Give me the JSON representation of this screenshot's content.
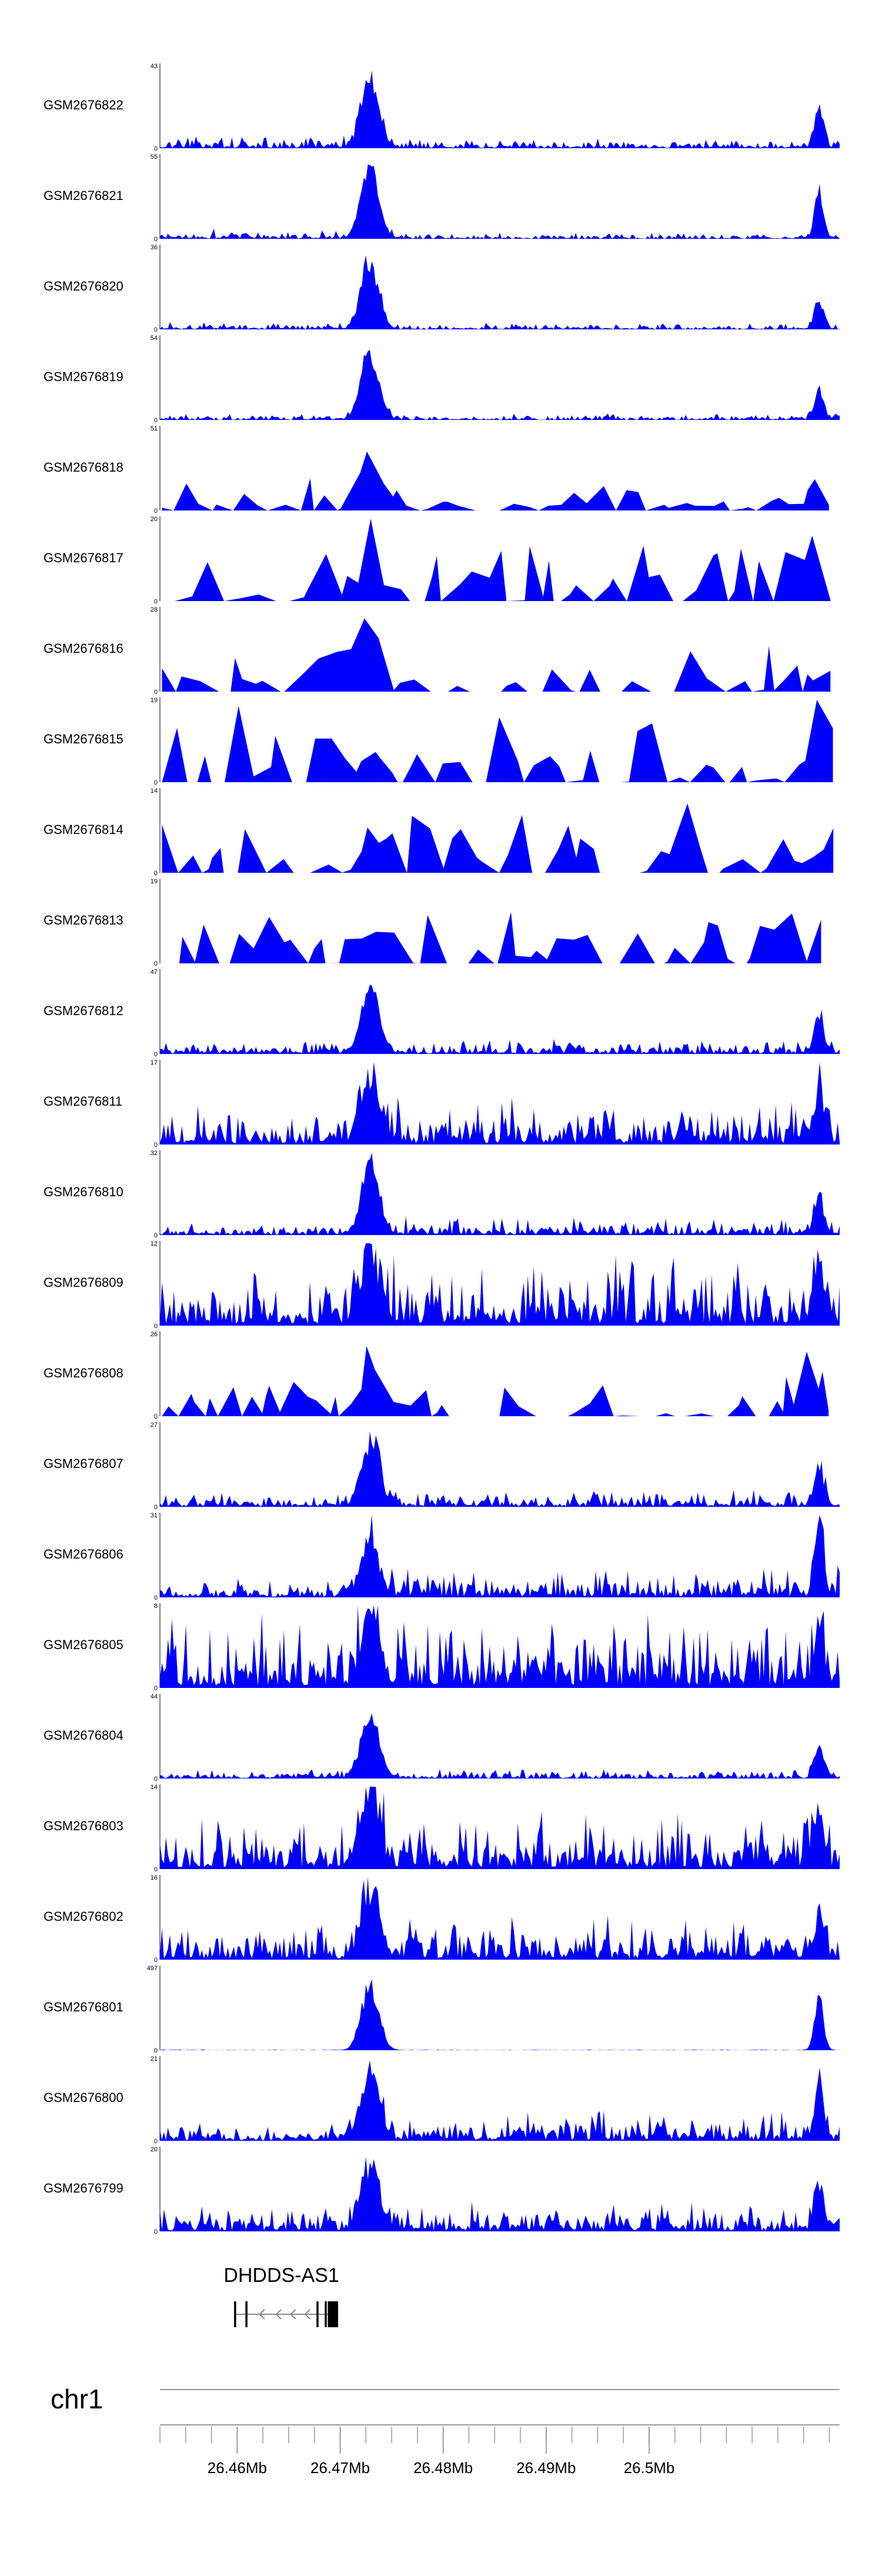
{
  "chart_data": {
    "type": "area",
    "color": "#0000ff",
    "x_unit": "Mb",
    "xlim": [
      26.4525,
      26.5185
    ],
    "series": [
      {
        "name": "GSM2676822",
        "ymax": 43,
        "shape": "peak",
        "peak_height": 1.0,
        "left_noise": 0.1,
        "right_noise": 0.08,
        "end_peak": 0.55,
        "sparse": false
      },
      {
        "name": "GSM2676821",
        "ymax": 55,
        "shape": "peak",
        "peak_height": 1.0,
        "left_noise": 0.08,
        "right_noise": 0.05,
        "end_peak": 0.65,
        "sparse": false
      },
      {
        "name": "GSM2676820",
        "ymax": 36,
        "shape": "peak",
        "peak_height": 1.0,
        "left_noise": 0.06,
        "right_noise": 0.05,
        "end_peak": 0.4,
        "sparse": false
      },
      {
        "name": "GSM2676819",
        "ymax": 54,
        "shape": "peak",
        "peak_height": 1.0,
        "left_noise": 0.05,
        "right_noise": 0.05,
        "end_peak": 0.45,
        "sparse": false
      },
      {
        "name": "GSM2676818",
        "ymax": 51,
        "shape": "peak",
        "peak_height": 0.9,
        "left_noise": 0.35,
        "right_noise": 0.25,
        "end_peak": 0.6,
        "sparse": true
      },
      {
        "name": "GSM2676817",
        "ymax": 20,
        "shape": "sparse",
        "peak_height": 0.7,
        "left_noise": 0.55,
        "right_noise": 0.85,
        "end_peak": 0.5,
        "sparse": true
      },
      {
        "name": "GSM2676816",
        "ymax": 28,
        "shape": "sparse",
        "peak_height": 1.0,
        "left_noise": 0.5,
        "right_noise": 0.55,
        "end_peak": 0.4,
        "sparse": true
      },
      {
        "name": "GSM2676815",
        "ymax": 19,
        "shape": "sparse",
        "peak_height": 0.6,
        "left_noise": 0.8,
        "right_noise": 0.8,
        "end_peak": 0.5,
        "sparse": true
      },
      {
        "name": "GSM2676814",
        "ymax": 14,
        "shape": "sparse",
        "peak_height": 0.6,
        "left_noise": 0.75,
        "right_noise": 0.8,
        "end_peak": 0.6,
        "sparse": true
      },
      {
        "name": "GSM2676813",
        "ymax": 19,
        "shape": "sparse",
        "peak_height": 0.7,
        "left_noise": 0.85,
        "right_noise": 0.85,
        "end_peak": 0.6,
        "sparse": true
      },
      {
        "name": "GSM2676812",
        "ymax": 47,
        "shape": "peak",
        "peak_height": 0.95,
        "left_noise": 0.12,
        "right_noise": 0.12,
        "end_peak": 0.55,
        "sparse": false
      },
      {
        "name": "GSM2676811",
        "ymax": 17,
        "shape": "peak",
        "peak_height": 0.95,
        "left_noise": 0.3,
        "right_noise": 0.4,
        "end_peak": 0.65,
        "sparse": false
      },
      {
        "name": "GSM2676810",
        "ymax": 32,
        "shape": "peak",
        "peak_height": 0.95,
        "left_noise": 0.1,
        "right_noise": 0.15,
        "end_peak": 0.55,
        "sparse": false
      },
      {
        "name": "GSM2676809",
        "ymax": 12,
        "shape": "peak",
        "peak_height": 0.95,
        "left_noise": 0.45,
        "right_noise": 0.55,
        "end_peak": 0.8,
        "sparse": false
      },
      {
        "name": "GSM2676808",
        "ymax": 26,
        "shape": "sparse",
        "peak_height": 0.7,
        "left_noise": 0.55,
        "right_noise": 0.65,
        "end_peak": 0.45,
        "sparse": true
      },
      {
        "name": "GSM2676807",
        "ymax": 27,
        "shape": "peak",
        "peak_height": 0.95,
        "left_noise": 0.12,
        "right_noise": 0.15,
        "end_peak": 0.55,
        "sparse": false
      },
      {
        "name": "GSM2676806",
        "ymax": 31,
        "shape": "peak",
        "peak_height": 0.8,
        "left_noise": 0.15,
        "right_noise": 0.25,
        "end_peak": 0.95,
        "sparse": false
      },
      {
        "name": "GSM2676805",
        "ymax": 8,
        "shape": "peak",
        "peak_height": 0.95,
        "left_noise": 0.55,
        "right_noise": 0.65,
        "end_peak": 0.7,
        "sparse": false
      },
      {
        "name": "GSM2676804",
        "ymax": 44,
        "shape": "peak",
        "peak_height": 0.95,
        "left_noise": 0.08,
        "right_noise": 0.08,
        "end_peak": 0.4,
        "sparse": false
      },
      {
        "name": "GSM2676803",
        "ymax": 14,
        "shape": "peak",
        "peak_height": 0.95,
        "left_noise": 0.4,
        "right_noise": 0.5,
        "end_peak": 0.7,
        "sparse": false
      },
      {
        "name": "GSM2676802",
        "ymax": 16,
        "shape": "peak",
        "peak_height": 0.95,
        "left_noise": 0.3,
        "right_noise": 0.35,
        "end_peak": 0.6,
        "sparse": false
      },
      {
        "name": "GSM2676801",
        "ymax": 497,
        "shape": "peak",
        "peak_height": 0.95,
        "left_noise": 0.005,
        "right_noise": 0.005,
        "end_peak": 0.75,
        "sparse": false
      },
      {
        "name": "GSM2676800",
        "ymax": 21,
        "shape": "peak",
        "peak_height": 0.95,
        "left_noise": 0.15,
        "right_noise": 0.25,
        "end_peak": 0.7,
        "sparse": false
      },
      {
        "name": "GSM2676799",
        "ymax": 20,
        "shape": "peak",
        "peak_height": 0.95,
        "left_noise": 0.2,
        "right_noise": 0.25,
        "end_peak": 0.6,
        "sparse": false
      }
    ],
    "ylabel_min": "0",
    "gene": {
      "name": "DHDDS-AS1",
      "strand": "-",
      "exons_mb": [
        [
          26.4597,
          26.4599
        ],
        [
          26.4608,
          26.461
        ],
        [
          26.4677,
          26.4679
        ],
        [
          26.4685,
          26.4687
        ],
        [
          26.4688,
          26.4698
        ]
      ],
      "start_mb": 26.4597,
      "end_mb": 26.4698
    },
    "chromosome": "chr1",
    "x_ticks": [
      {
        "value": 26.46,
        "label": "26.46Mb"
      },
      {
        "value": 26.47,
        "label": "26.47Mb"
      },
      {
        "value": 26.48,
        "label": "26.48Mb"
      },
      {
        "value": 26.49,
        "label": "26.49Mb"
      },
      {
        "value": 26.5,
        "label": "26.5Mb"
      }
    ],
    "minor_tick_step_mb": 0.0025
  }
}
